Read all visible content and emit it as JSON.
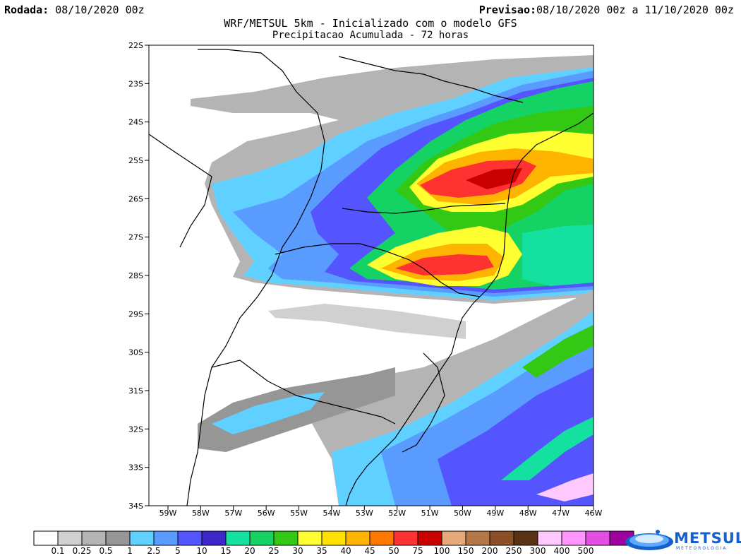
{
  "header": {
    "rodada_label": "Rodada:",
    "rodada_value": "08/10/2020 00z",
    "previsao_label": "Previsao:",
    "previsao_value": "08/10/2020 00z a 11/10/2020 00z",
    "title": "WRF/METSUL 5km - Inicializado com o modelo GFS",
    "subtitle": "Precipitacao Acumulada - 72 horas"
  },
  "map": {
    "lat_labels": [
      "22S",
      "23S",
      "24S",
      "25S",
      "26S",
      "27S",
      "28S",
      "29S",
      "30S",
      "31S",
      "32S",
      "33S",
      "34S"
    ],
    "lon_labels": [
      "59W",
      "58W",
      "57W",
      "56W",
      "55W",
      "54W",
      "53W",
      "52W",
      "51W",
      "50W",
      "49W",
      "48W",
      "47W",
      "46W"
    ]
  },
  "colorbar": {
    "labels": [
      "0.1",
      "0.25",
      "0.5",
      "1",
      "2.5",
      "5",
      "10",
      "15",
      "20",
      "25",
      "30",
      "35",
      "40",
      "45",
      "50",
      "75",
      "100",
      "150",
      "200",
      "250",
      "300",
      "400",
      "500"
    ],
    "colors": [
      "#ffffff",
      "#d0d0d0",
      "#b4b4b4",
      "#969696",
      "#5fd0ff",
      "#5a9bff",
      "#5555ff",
      "#3c28c8",
      "#14e1a0",
      "#14d264",
      "#32c814",
      "#ffff32",
      "#ffe100",
      "#ffb400",
      "#ff7800",
      "#ff3232",
      "#c80000",
      "#e6aa78",
      "#b47846",
      "#8c5028",
      "#5a3214",
      "#ffc8ff",
      "#ff96ff",
      "#e150e1",
      "#a000a0"
    ]
  },
  "logo": {
    "name": "METSUL",
    "sub": "METEOROLOGIA"
  }
}
